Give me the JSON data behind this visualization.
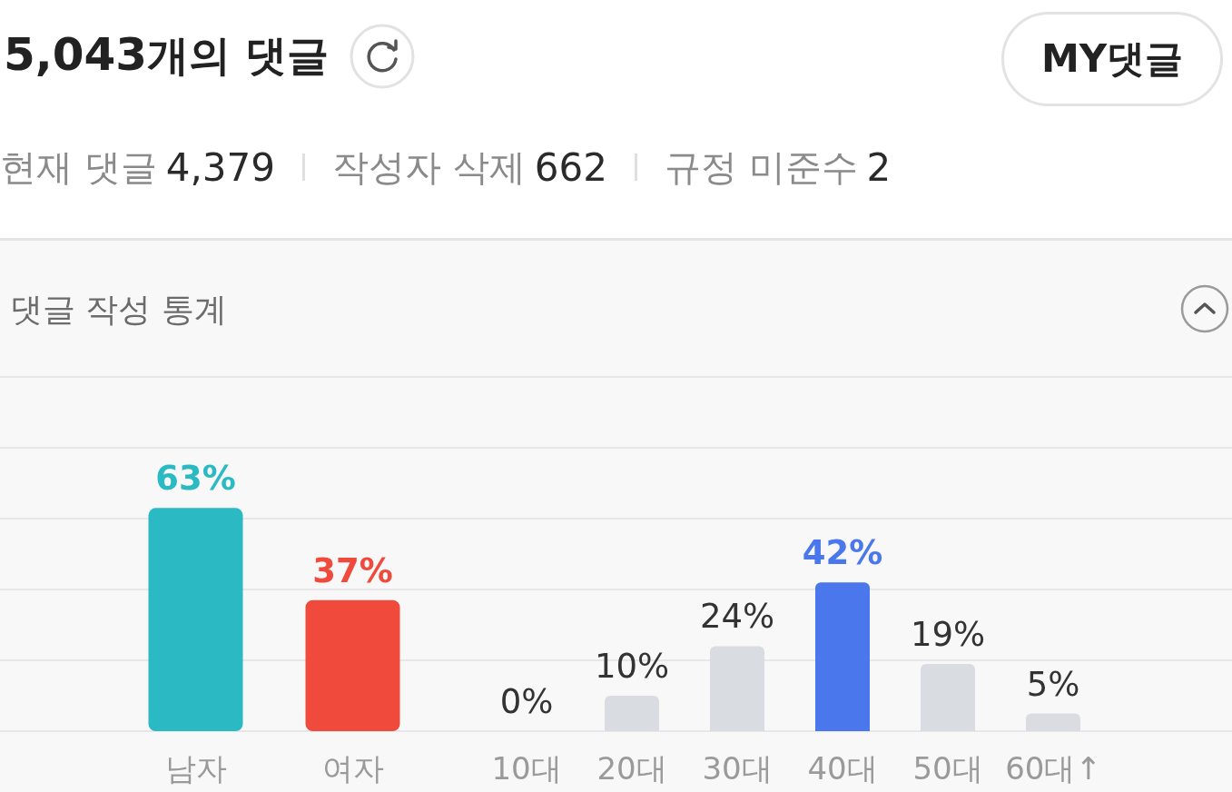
{
  "chart_data": [
    {
      "type": "other",
      "title": "5,043개의 댓글",
      "annotations": [
        "MY댓글",
        "현재 댓글 4,379",
        "작성자 삭제 662",
        "규정 미준수 2"
      ]
    },
    {
      "type": "bar",
      "title": "댓글 작성 통계",
      "categories": [
        "남자",
        "여자"
      ],
      "values": [
        63,
        37
      ],
      "colors": [
        "#2bbac4",
        "#ef4a3b"
      ],
      "value_labels": [
        "63%",
        "37%"
      ],
      "ylim": [
        0,
        100
      ],
      "yticks": [
        0,
        20,
        40,
        60,
        80,
        100
      ],
      "grid": "y",
      "tick_labels": "x"
    },
    {
      "type": "bar",
      "categories": [
        "10대",
        "20대",
        "30대",
        "40대",
        "50대",
        "60대↑"
      ],
      "values": [
        0,
        10,
        24,
        42,
        19,
        5
      ],
      "colors": [
        "#d9dce1",
        "#d9dce1",
        "#d9dce1",
        "#4a78ec",
        "#d9dce1",
        "#d9dce1"
      ],
      "value_labels": [
        "0%",
        "10%",
        "24%",
        "42%",
        "19%",
        "5%"
      ],
      "ylim": [
        0,
        100
      ],
      "yticks": [
        0,
        20,
        40,
        60,
        80,
        100
      ],
      "grid": "y",
      "tick_labels": "x"
    }
  ]
}
